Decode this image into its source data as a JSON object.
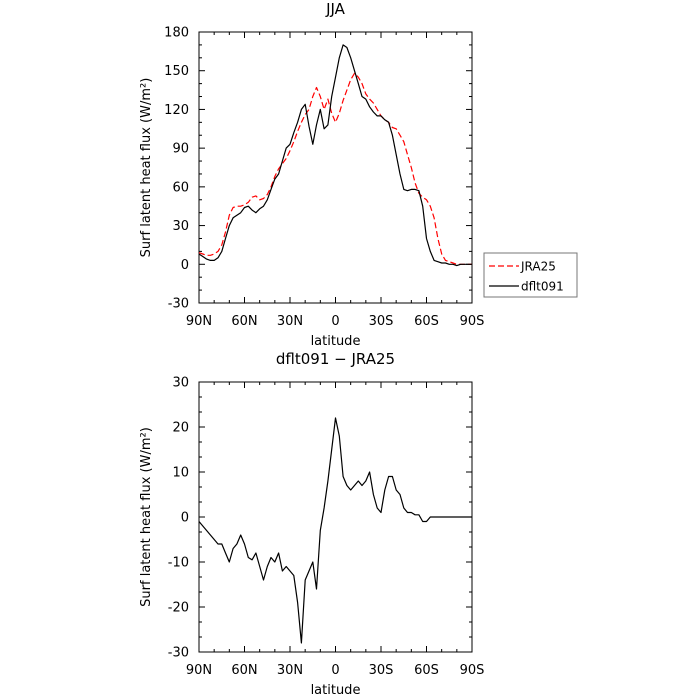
{
  "chart_data": [
    {
      "type": "line",
      "title": "JJA",
      "xlabel": "latitude",
      "ylabel": "Surf latent heat flux (W/m²)",
      "xlim": [
        -90,
        90
      ],
      "ylim": [
        -30,
        180
      ],
      "x_tick_values": [
        -90,
        -60,
        -30,
        0,
        30,
        60,
        90
      ],
      "x_tick_labels": [
        "90N",
        "60N",
        "30N",
        "0",
        "30S",
        "60S",
        "90S"
      ],
      "y_tick_values": [
        -30,
        0,
        30,
        60,
        90,
        120,
        150,
        180
      ],
      "y_tick_labels": [
        "-30",
        "0",
        "30",
        "60",
        "90",
        "120",
        "150",
        "180"
      ],
      "grid": false,
      "legend_position": "right, outside plot",
      "series": [
        {
          "name": "JRA25",
          "color": "#ff0000",
          "dash": "dashed",
          "x": [
            -90,
            -87.5,
            -85,
            -82.5,
            -80,
            -77.5,
            -75,
            -72.5,
            -70,
            -67.5,
            -65,
            -62.5,
            -60,
            -57.5,
            -55,
            -52.5,
            -50,
            -47.5,
            -45,
            -42.5,
            -40,
            -37.5,
            -35,
            -32.5,
            -30,
            -27.5,
            -25,
            -22.5,
            -20,
            -17.5,
            -15,
            -12.5,
            -10,
            -7.5,
            -5,
            -2.5,
            0,
            2.5,
            5,
            7.5,
            10,
            12.5,
            15,
            17.5,
            20,
            22.5,
            25,
            27.5,
            30,
            32.5,
            35,
            37.5,
            40,
            42.5,
            45,
            47.5,
            50,
            52.5,
            55,
            57.5,
            60,
            62.5,
            65,
            67.5,
            70,
            72.5,
            75,
            77.5,
            80,
            82.5,
            85,
            87.5,
            90
          ],
          "values": [
            9,
            8,
            7,
            7,
            8,
            10,
            15,
            25,
            38,
            44,
            45,
            45,
            46,
            48,
            52,
            53,
            50,
            51,
            54,
            60,
            68,
            74,
            78,
            82,
            88,
            95,
            103,
            110,
            116,
            120,
            130,
            137,
            130,
            120,
            128,
            117,
            110,
            117,
            127,
            135,
            143,
            148,
            145,
            140,
            132,
            128,
            125,
            120,
            115,
            112,
            110,
            106,
            105,
            100,
            95,
            85,
            75,
            63,
            55,
            52,
            50,
            45,
            36,
            20,
            8,
            3,
            2,
            1,
            0,
            0,
            0,
            0,
            0
          ]
        },
        {
          "name": "dflt091",
          "color": "#000000",
          "dash": "solid",
          "x": [
            -90,
            -87.5,
            -85,
            -82.5,
            -80,
            -77.5,
            -75,
            -72.5,
            -70,
            -67.5,
            -65,
            -62.5,
            -60,
            -57.5,
            -55,
            -52.5,
            -50,
            -47.5,
            -45,
            -42.5,
            -40,
            -37.5,
            -35,
            -32.5,
            -30,
            -27.5,
            -25,
            -22.5,
            -20,
            -17.5,
            -15,
            -12.5,
            -10,
            -7.5,
            -5,
            -2.5,
            0,
            2.5,
            5,
            7.5,
            10,
            12.5,
            15,
            17.5,
            20,
            22.5,
            25,
            27.5,
            30,
            32.5,
            35,
            37.5,
            40,
            42.5,
            45,
            47.5,
            50,
            52.5,
            55,
            57.5,
            60,
            62.5,
            65,
            67.5,
            70,
            72.5,
            75,
            77.5,
            80,
            82.5,
            85,
            87.5,
            90
          ],
          "values": [
            8,
            6,
            4,
            3,
            3,
            5,
            10,
            20,
            30,
            36,
            38,
            40,
            44,
            45,
            42,
            40,
            43,
            45,
            50,
            58,
            66,
            70,
            80,
            90,
            93,
            102,
            110,
            120,
            124,
            107,
            93,
            108,
            120,
            105,
            108,
            130,
            145,
            160,
            170,
            168,
            160,
            150,
            140,
            130,
            128,
            122,
            118,
            115,
            115,
            112,
            110,
            100,
            85,
            70,
            58,
            57,
            58,
            58,
            57,
            45,
            20,
            10,
            3,
            2,
            1,
            1,
            0,
            0,
            -1,
            0,
            0,
            0,
            0
          ]
        }
      ]
    },
    {
      "type": "line",
      "title": "dflt091 − JRA25",
      "xlabel": "latitude",
      "ylabel": "Surf latent heat flux (W/m²)",
      "xlim": [
        -90,
        90
      ],
      "ylim": [
        -30,
        30
      ],
      "x_tick_values": [
        -90,
        -60,
        -30,
        0,
        30,
        60,
        90
      ],
      "x_tick_labels": [
        "90N",
        "60N",
        "30N",
        "0",
        "30S",
        "60S",
        "90S"
      ],
      "y_tick_values": [
        -30,
        -20,
        -10,
        0,
        10,
        20,
        30
      ],
      "y_tick_labels": [
        "-30",
        "-20",
        "-10",
        "0",
        "10",
        "20",
        "30"
      ],
      "grid": false,
      "series": [
        {
          "color": "#000000",
          "dash": "solid",
          "x": [
            -90,
            -87.5,
            -85,
            -82.5,
            -80,
            -77.5,
            -75,
            -72.5,
            -70,
            -67.5,
            -65,
            -62.5,
            -60,
            -57.5,
            -55,
            -52.5,
            -50,
            -47.5,
            -45,
            -42.5,
            -40,
            -37.5,
            -35,
            -32.5,
            -30,
            -27.5,
            -25,
            -22.5,
            -20,
            -17.5,
            -15,
            -12.5,
            -10,
            -7.5,
            -5,
            -2.5,
            0,
            2.5,
            5,
            7.5,
            10,
            12.5,
            15,
            17.5,
            20,
            22.5,
            25,
            27.5,
            30,
            32.5,
            35,
            37.5,
            40,
            42.5,
            45,
            47.5,
            50,
            52.5,
            55,
            57.5,
            60,
            62.5,
            65,
            67.5,
            70,
            72.5,
            75,
            77.5,
            80,
            82.5,
            85,
            87.5,
            90
          ],
          "values": [
            -1,
            -2,
            -3,
            -4,
            -5,
            -6,
            -6,
            -8,
            -10,
            -7,
            -6,
            -4,
            -6,
            -9,
            -9.5,
            -8,
            -11,
            -14,
            -11,
            -9,
            -10,
            -8,
            -12,
            -11,
            -12,
            -13,
            -19,
            -28,
            -14,
            -12,
            -10,
            -16,
            -3,
            2,
            8,
            15,
            22,
            18,
            9,
            7,
            6,
            7,
            8,
            7,
            8,
            10,
            5,
            2,
            1,
            6,
            9,
            9,
            6,
            5,
            2,
            1,
            1,
            0.5,
            0.5,
            -1,
            -1,
            0,
            0,
            0,
            0,
            0,
            0,
            0,
            0,
            0,
            0,
            0,
            0
          ]
        }
      ]
    }
  ]
}
